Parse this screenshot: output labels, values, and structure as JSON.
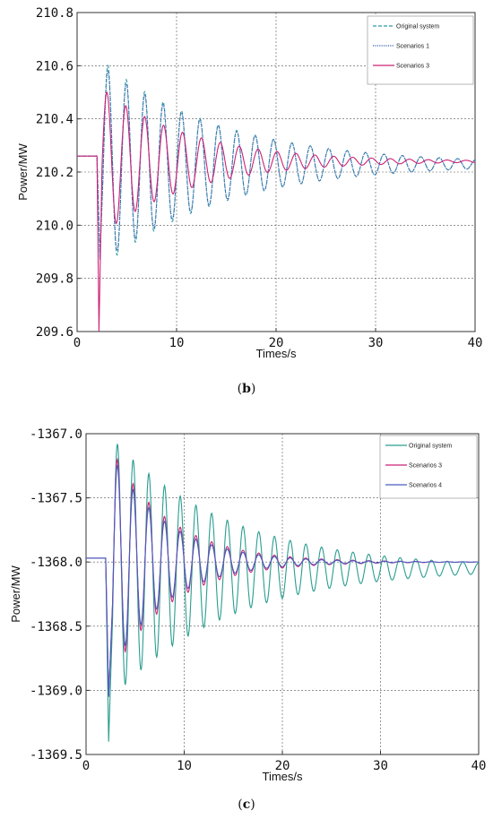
{
  "chart_data": [
    {
      "type": "line",
      "caption": "(b)",
      "xlabel": "Times/s",
      "ylabel": "Power/MW",
      "xlim": [
        0,
        40
      ],
      "ylim": [
        209.6,
        210.8
      ],
      "xticks": [
        "0",
        "10",
        "20",
        "30",
        "40"
      ],
      "yticks": [
        "209.6",
        "209.8",
        "210.0",
        "210.2",
        "210.4",
        "210.6",
        "210.8"
      ],
      "legend": "top-right",
      "grid": "dashed",
      "series": [
        {
          "name": "Original system",
          "color": "#2e9aa6",
          "style": "dashed",
          "x": [
            0,
            2,
            2.3,
            2.6,
            3.1,
            4.0,
            5.0,
            6.0,
            8.0,
            10.0,
            15.0,
            20.0,
            25.0,
            30.0,
            35.0,
            40.0
          ],
          "y": [
            210.26,
            210.26,
            209.88,
            210.1,
            210.6,
            209.95,
            210.53,
            209.98,
            210.48,
            210.04,
            210.37,
            210.12,
            210.29,
            210.19,
            210.27,
            210.23
          ]
        },
        {
          "name": "Scenarios 1",
          "color": "#3a5fb0",
          "style": "dotted",
          "x": [
            0,
            2,
            2.3,
            2.6,
            3.1,
            4.0,
            5.0,
            6.0,
            8.0,
            10.0,
            15.0,
            20.0,
            25.0,
            30.0,
            35.0,
            40.0
          ],
          "y": [
            210.26,
            210.26,
            209.87,
            210.08,
            210.58,
            209.94,
            210.5,
            209.99,
            210.44,
            210.06,
            210.35,
            210.13,
            210.28,
            210.19,
            210.27,
            210.23
          ]
        },
        {
          "name": "Scenarios 3",
          "color": "#cc2277",
          "style": "solid",
          "x": [
            0,
            2,
            2.2,
            2.5,
            3.0,
            3.9,
            4.8,
            5.8,
            7.7,
            9.6,
            13.0,
            17.0,
            22.0,
            30.0,
            40.0
          ],
          "y": [
            210.26,
            210.26,
            209.6,
            209.9,
            210.5,
            209.98,
            210.43,
            210.03,
            210.35,
            210.1,
            210.3,
            210.2,
            210.27,
            210.24,
            210.24
          ]
        }
      ]
    },
    {
      "type": "line",
      "caption": "(c)",
      "xlabel": "Times/s",
      "ylabel": "Power/MW",
      "xlim": [
        0,
        40
      ],
      "ylim": [
        -1369.5,
        -1367.0
      ],
      "xticks": [
        "0",
        "10",
        "20",
        "30",
        "40"
      ],
      "yticks": [
        "-1369.5",
        "-1369.0",
        "-1368.5",
        "-1368.0",
        "-1367.5",
        "-1367.0"
      ],
      "legend": "top-right",
      "grid": "dashed",
      "series": [
        {
          "name": "Original system",
          "color": "#2a9d8f",
          "style": "solid",
          "x": [
            0,
            2,
            2.3,
            2.7,
            3.2,
            4.0,
            5.0,
            6.0,
            8.0,
            10.0,
            15.0,
            20.0,
            25.0,
            30.0,
            35.0,
            40.0
          ],
          "y": [
            -1367.97,
            -1367.97,
            -1369.4,
            -1368.7,
            -1367.08,
            -1368.85,
            -1367.25,
            -1368.75,
            -1367.4,
            -1368.55,
            -1367.6,
            -1368.3,
            -1367.85,
            -1368.15,
            -1367.95,
            -1368.05
          ]
        },
        {
          "name": "Scenarios 3",
          "color": "#cc2277",
          "style": "solid",
          "x": [
            0,
            2,
            2.3,
            2.7,
            3.2,
            4.0,
            5.0,
            6.0,
            8.0,
            10.0,
            15.0,
            20.0,
            25.0,
            30.0,
            40.0
          ],
          "y": [
            -1367.97,
            -1367.97,
            -1369.05,
            -1368.5,
            -1367.2,
            -1368.8,
            -1367.42,
            -1368.4,
            -1367.75,
            -1368.2,
            -1367.9,
            -1368.05,
            -1367.98,
            -1368.02,
            -1368.0
          ]
        },
        {
          "name": "Scenarios 4",
          "color": "#4a5cc0",
          "style": "solid",
          "x": [
            0,
            2,
            2.3,
            2.7,
            3.2,
            4.0,
            5.0,
            6.0,
            8.0,
            10.0,
            15.0,
            20.0,
            25.0,
            30.0,
            40.0
          ],
          "y": [
            -1367.97,
            -1367.97,
            -1369.05,
            -1368.5,
            -1367.25,
            -1368.78,
            -1367.45,
            -1368.38,
            -1367.78,
            -1368.18,
            -1367.92,
            -1368.04,
            -1367.99,
            -1368.02,
            -1368.0
          ]
        }
      ]
    }
  ]
}
